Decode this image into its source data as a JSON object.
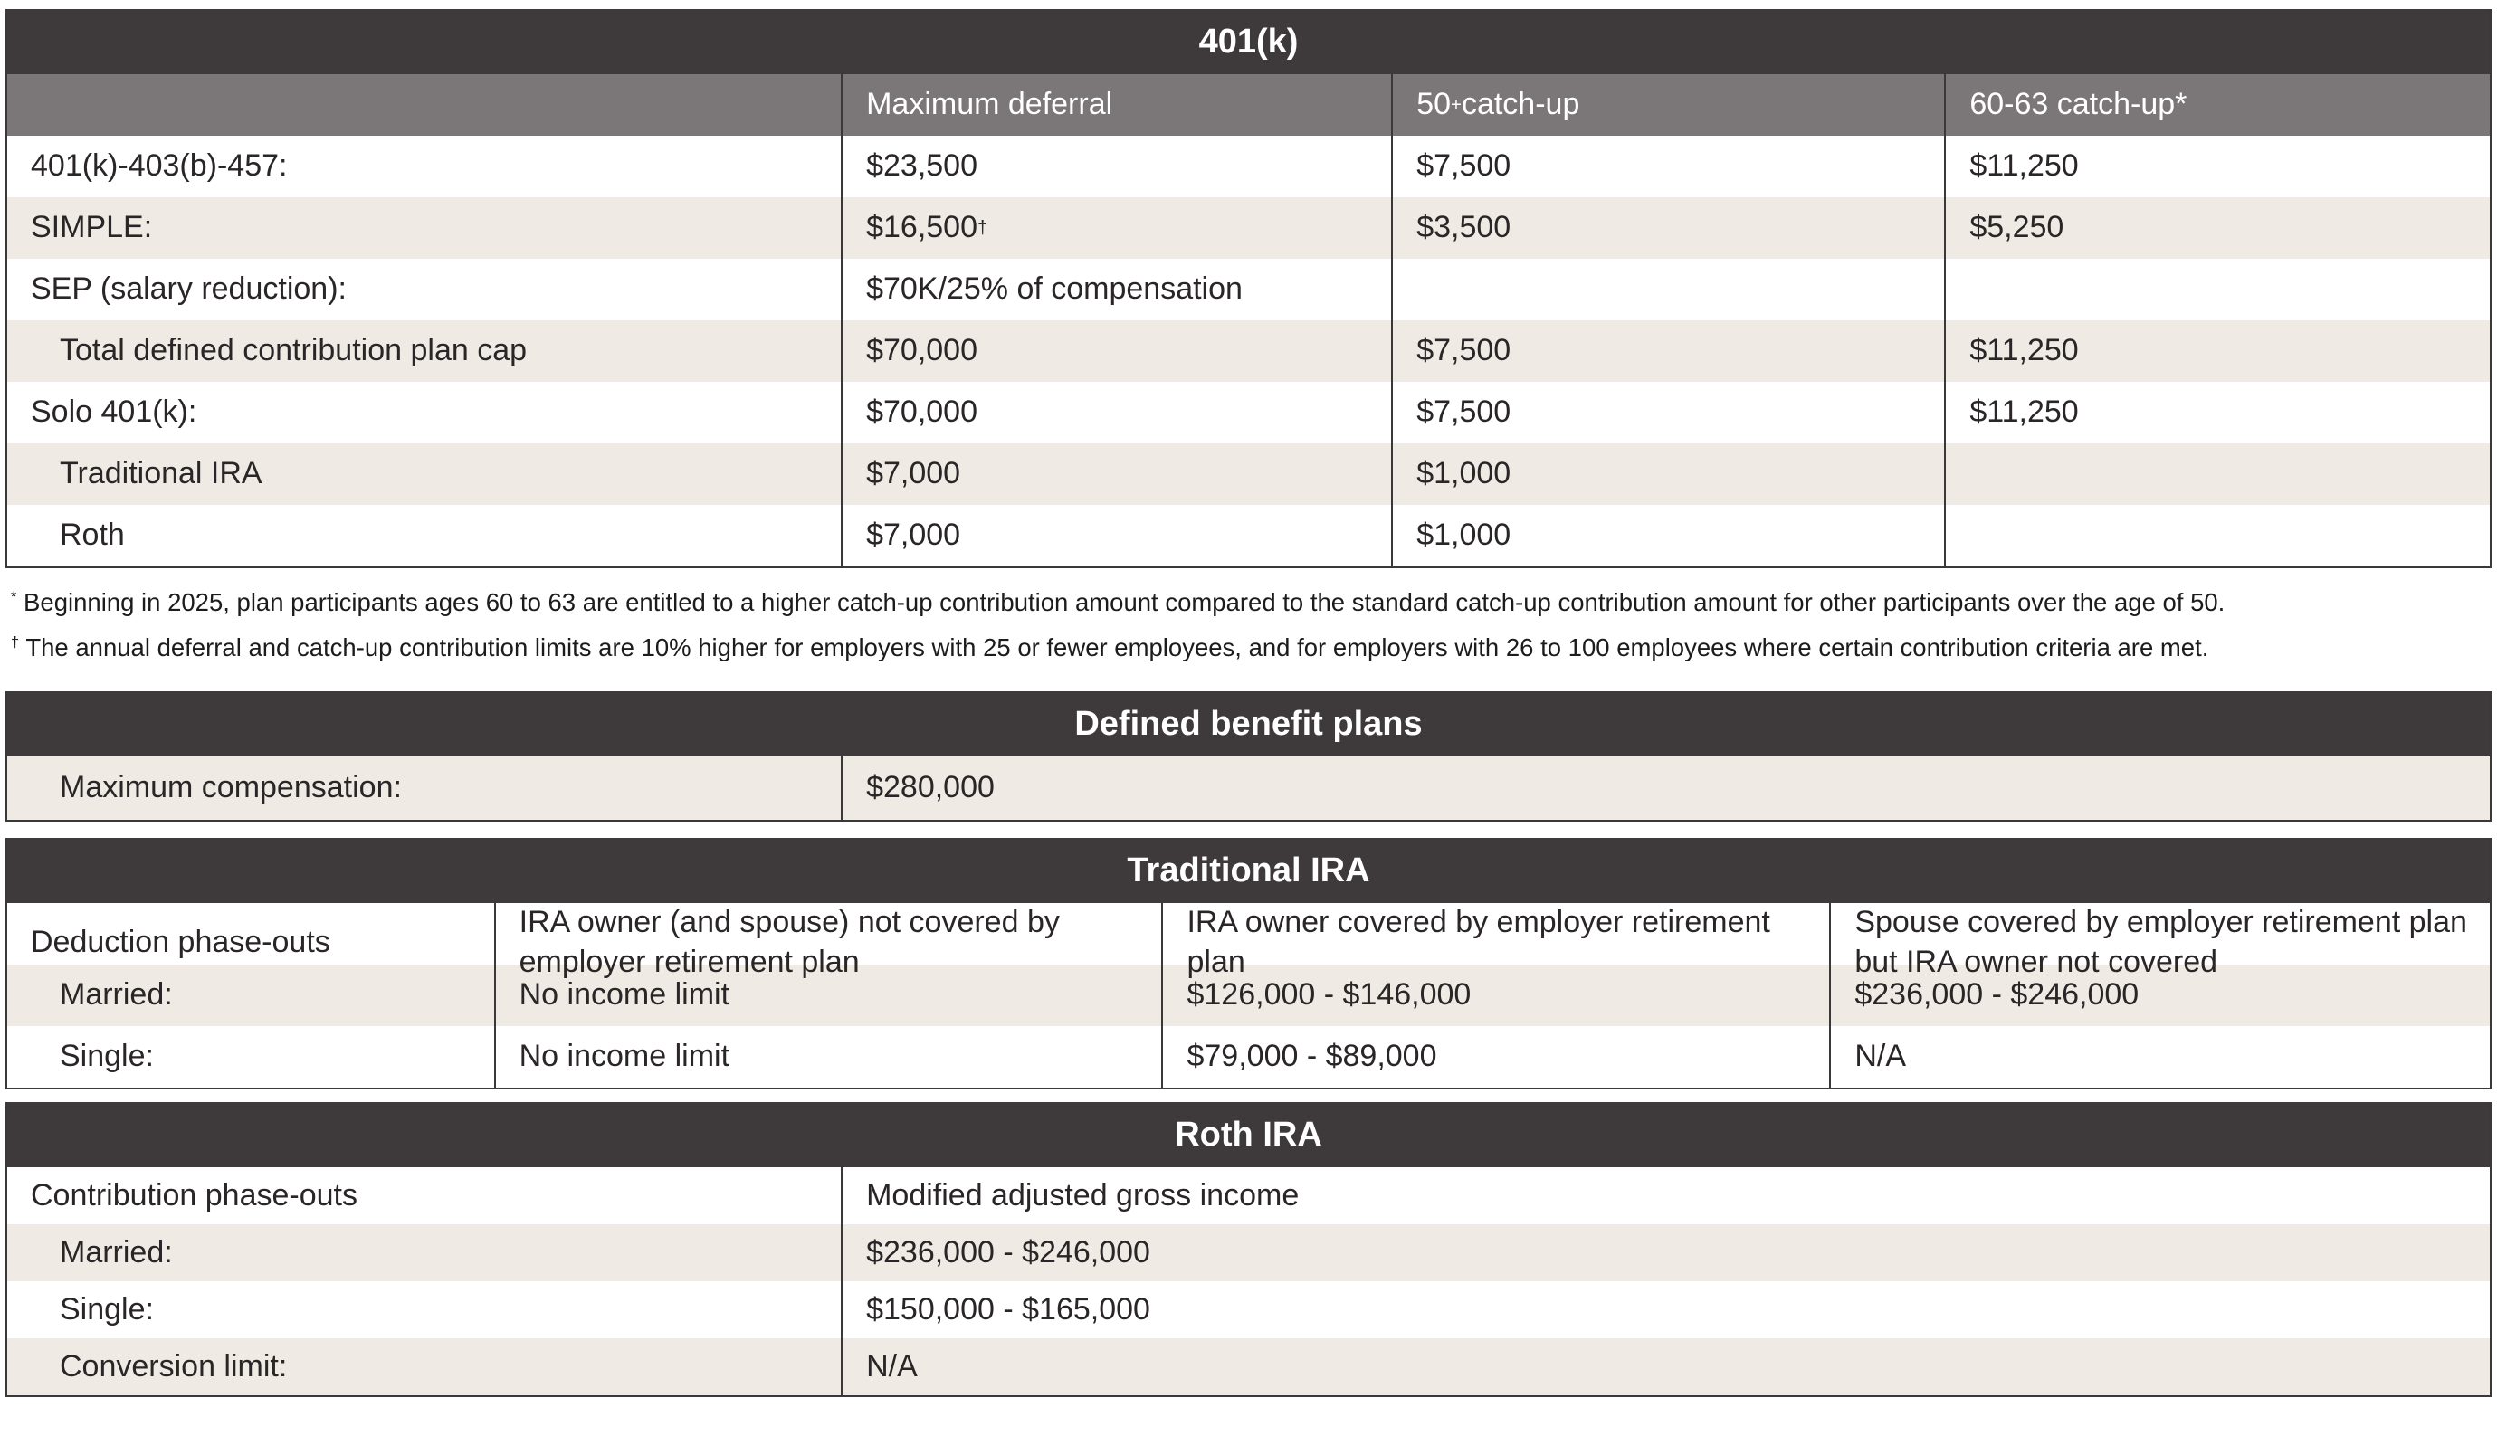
{
  "colors": {
    "header_bg": "#3E3A3C",
    "subheader_bg": "#7B7779",
    "row_shaded_bg": "#EFEBE4",
    "row_white_bg": "#FFFFFF",
    "border": "#3B3839",
    "text": "#2A2627",
    "header_text": "#FFFFFF"
  },
  "table_401k": {
    "title": "401(k)",
    "columns": {
      "label": "",
      "max_deferral": "Maximum deferral",
      "catch_50": {
        "base": "50",
        "sup": "+",
        "rest": " catch-up"
      },
      "catch_60_63": "60-63 catch-up*"
    },
    "rows": [
      {
        "label": "401(k)-403(b)-457:",
        "max_deferral": "$23,500",
        "catch_50": "$7,500",
        "catch_60_63": "$11,250"
      },
      {
        "label": "SIMPLE:",
        "max_deferral": "$16,500",
        "max_deferral_sup": "†",
        "catch_50": "$3,500",
        "catch_60_63": "$5,250"
      },
      {
        "label": "SEP (salary reduction):",
        "max_deferral": "$70K/25% of compensation",
        "catch_50": "",
        "catch_60_63": ""
      },
      {
        "label": "Total defined contribution plan cap",
        "max_deferral": "$70,000",
        "catch_50": "$7,500",
        "catch_60_63": "$11,250"
      },
      {
        "label": "Solo 401(k):",
        "max_deferral": "$70,000",
        "catch_50": "$7,500",
        "catch_60_63": "$11,250"
      },
      {
        "label": "Traditional IRA",
        "max_deferral": "$7,000",
        "catch_50": "$1,000",
        "catch_60_63": ""
      },
      {
        "label": "Roth",
        "max_deferral": "$7,000",
        "catch_50": "$1,000",
        "catch_60_63": ""
      }
    ]
  },
  "footnotes": [
    {
      "marker": "*",
      "text": " Beginning in 2025, plan participants ages 60 to 63 are entitled to a higher catch-up contribution amount compared to the standard catch-up contribution amount for other participants over the age of 50."
    },
    {
      "marker": "†",
      "text": " The annual deferral and catch-up contribution limits are 10% higher for employers with 25 or fewer employees, and for employers with 26 to 100 employees where certain contribution criteria are met."
    }
  ],
  "table_defined_benefit": {
    "title": "Defined benefit plans",
    "rows": [
      {
        "label": "Maximum compensation:",
        "value": "$280,000"
      }
    ]
  },
  "table_traditional_ira": {
    "title": "Traditional IRA",
    "columns": {
      "label": "Deduction phase-outs",
      "not_covered": "IRA owner (and spouse) not covered by employer retirement plan",
      "owner_covered": "IRA owner covered by employer retirement plan",
      "spouse_covered": "Spouse covered by employer retirement plan but IRA owner not covered"
    },
    "rows": [
      {
        "label": "Married:",
        "not_covered": "No income limit",
        "owner_covered": "$126,000 - $146,000",
        "spouse_covered": "$236,000 - $246,000"
      },
      {
        "label": "Single:",
        "not_covered": "No income limit",
        "owner_covered": "$79,000 - $89,000",
        "spouse_covered": "N/A"
      }
    ]
  },
  "table_roth_ira": {
    "title": "Roth IRA",
    "columns": {
      "label": "Contribution phase-outs",
      "value": "Modified adjusted gross income"
    },
    "rows": [
      {
        "label": "Married:",
        "value": "$236,000 - $246,000"
      },
      {
        "label": "Single:",
        "value": "$150,000 - $165,000"
      },
      {
        "label": "Conversion limit:",
        "value": "N/A"
      }
    ]
  }
}
